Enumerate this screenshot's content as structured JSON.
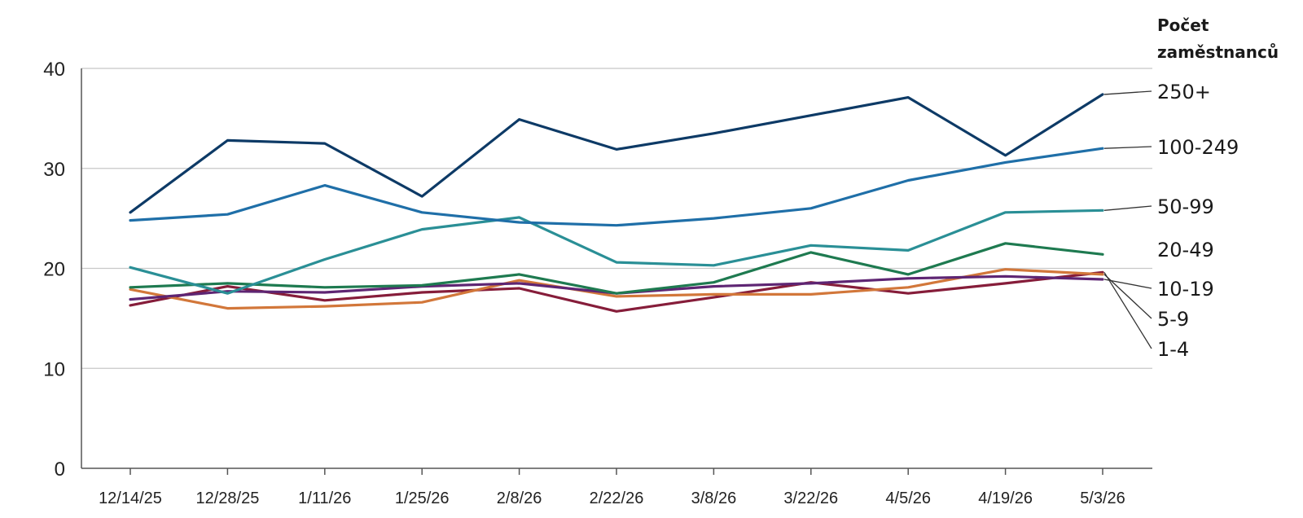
{
  "chart_data": {
    "type": "line",
    "legend_title_lines": [
      "Počet",
      "zaměstnanců"
    ],
    "x": [
      "12/14/25",
      "12/28/25",
      "1/11/26",
      "1/25/26",
      "2/8/26",
      "2/22/26",
      "3/8/26",
      "3/22/26",
      "4/5/26",
      "4/19/26",
      "5/3/26"
    ],
    "ylim": [
      0,
      40
    ],
    "yticks": [
      0,
      10,
      20,
      30,
      40
    ],
    "grid": true,
    "legend_placement": "right, labels at line ends",
    "series": [
      {
        "name": "250+",
        "color": "#0d3a66",
        "values": [
          25.6,
          32.8,
          32.5,
          27.2,
          34.9,
          31.9,
          33.5,
          35.3,
          37.1,
          31.3,
          37.4
        ]
      },
      {
        "name": "100-249",
        "color": "#1f6fa8",
        "values": [
          24.8,
          25.4,
          28.3,
          25.6,
          24.6,
          24.3,
          25.0,
          26.0,
          28.8,
          30.6,
          32.0
        ]
      },
      {
        "name": "50-99",
        "color": "#2a8f96",
        "values": [
          20.1,
          17.5,
          20.9,
          23.9,
          25.1,
          20.6,
          20.3,
          22.3,
          21.8,
          25.6,
          25.8
        ]
      },
      {
        "name": "20-49",
        "color": "#1e7a50",
        "values": [
          18.1,
          18.5,
          18.1,
          18.3,
          19.4,
          17.5,
          18.6,
          21.6,
          19.4,
          22.5,
          21.4
        ]
      },
      {
        "name": "10-19",
        "color": "#5e2573",
        "values": [
          16.9,
          17.7,
          17.6,
          18.2,
          18.5,
          17.5,
          18.2,
          18.5,
          19.0,
          19.2,
          18.9
        ]
      },
      {
        "name": "5-9",
        "color": "#d2773a",
        "values": [
          17.9,
          16.0,
          16.2,
          16.6,
          18.8,
          17.2,
          17.4,
          17.4,
          18.1,
          19.9,
          19.4
        ]
      },
      {
        "name": "1-4",
        "color": "#861d3a",
        "values": [
          16.3,
          18.2,
          16.8,
          17.6,
          18.0,
          15.7,
          17.1,
          18.6,
          17.5,
          18.5,
          19.6
        ]
      }
    ],
    "label_rows": [
      112,
      180,
      253,
      306,
      354,
      391,
      428
    ]
  }
}
